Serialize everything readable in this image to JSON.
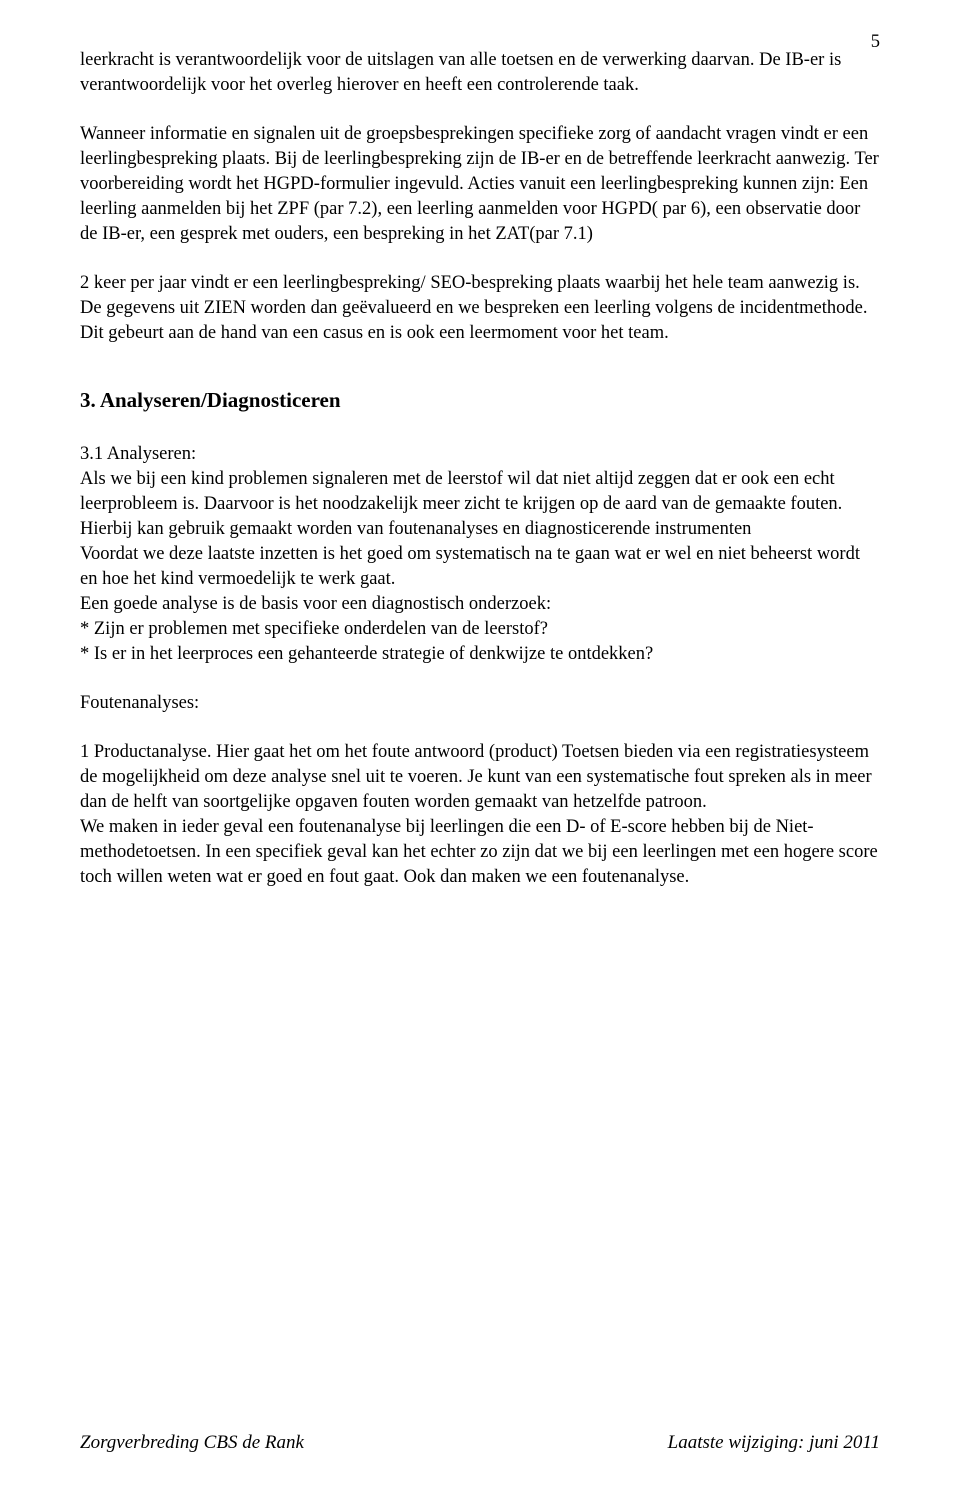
{
  "page": {
    "number": "5"
  },
  "body": {
    "p1": "leerkracht is verantwoordelijk voor de uitslagen van alle toetsen en de verwerking daarvan. De IB-er is verantwoordelijk voor het overleg hierover en heeft een controlerende taak.",
    "p2": "Wanneer informatie en signalen uit de groepsbesprekingen specifieke zorg of aandacht vragen vindt er een leerlingbespreking plaats. Bij de leerlingbespreking zijn de IB-er en de betreffende leerkracht aanwezig. Ter voorbereiding wordt het HGPD-formulier ingevuld. Acties vanuit een leerlingbespreking kunnen zijn: Een leerling aanmelden bij het ZPF (par 7.2), een leerling aanmelden voor HGPD( par 6), een observatie door de IB-er, een gesprek met ouders, een bespreking in het ZAT(par 7.1)",
    "p3": "2 keer per jaar vindt er een leerlingbespreking/ SEO-bespreking plaats waarbij het hele team aanwezig is. De gegevens uit ZIEN worden dan geëvalueerd en we bespreken een leerling volgens de incidentmethode. Dit gebeurt aan de hand van een casus en is ook een leermoment voor het team.",
    "section3_title": "3. Analyseren/Diagnosticeren",
    "p4a": "3.1 Analyseren:",
    "p4b": "Als we bij een kind problemen signaleren met de leerstof wil dat niet altijd zeggen dat er ook een echt leerprobleem is. Daarvoor is het noodzakelijk meer zicht te krijgen op de aard van de gemaakte fouten. Hierbij kan gebruik gemaakt worden van foutenanalyses en diagnosticerende instrumenten",
    "p4c": "Voordat we deze laatste inzetten is het goed om systematisch na te gaan wat er wel en niet beheerst wordt en hoe het kind vermoedelijk te werk gaat.",
    "p4d": "Een goede analyse is de basis voor een diagnostisch onderzoek:",
    "p4e": "* Zijn er problemen met specifieke onderdelen van de leerstof?",
    "p4f": "* Is er in het leerproces een gehanteerde strategie of denkwijze te ontdekken?",
    "p5": "Foutenanalyses:",
    "p6a": "1 Productanalyse. Hier gaat het om het foute antwoord (product) Toetsen bieden via een registratiesysteem de mogelijkheid om deze analyse snel uit te voeren. Je kunt van een systematische fout spreken als in meer dan de helft van soortgelijke opgaven fouten worden gemaakt van hetzelfde patroon.",
    "p6b": "We maken in ieder geval een foutenanalyse bij leerlingen die een D- of E-score hebben bij de Niet- methodetoetsen. In een specifiek geval kan het echter zo zijn dat we bij een leerlingen met een hogere score toch willen weten wat er goed en fout gaat. Ook dan maken we een foutenanalyse."
  },
  "footer": {
    "left": "Zorgverbreding CBS de Rank",
    "right": "Laatste wijziging: juni 2011"
  }
}
